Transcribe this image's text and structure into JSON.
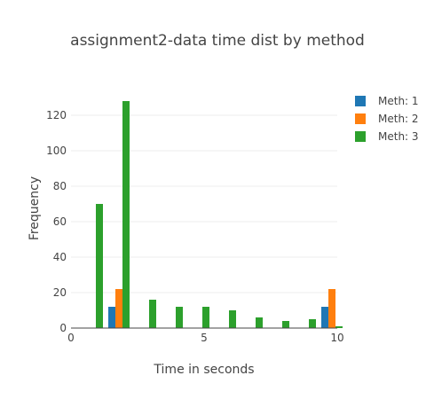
{
  "chart_data": {
    "type": "bar",
    "title": "assignment2-data time dist by method",
    "xlabel": "Time in seconds",
    "ylabel": "Frequency",
    "xlim": [
      0,
      10
    ],
    "ylim": [
      0,
      135
    ],
    "xticks": [
      0,
      5,
      10
    ],
    "yticks": [
      0,
      20,
      40,
      60,
      80,
      100,
      120
    ],
    "grid": true,
    "legend_position": "top-right",
    "bin_centers": [
      0.8,
      1.8,
      2.8,
      3.8,
      4.8,
      5.8,
      6.8,
      7.8,
      8.8,
      9.8
    ],
    "series": [
      {
        "name": "Meth: 1",
        "color": "#1f77b4",
        "values": [
          0,
          12,
          0,
          0,
          0,
          0,
          0,
          0,
          0,
          12
        ]
      },
      {
        "name": "Meth: 2",
        "color": "#ff7f0e",
        "values": [
          0,
          22,
          0,
          0,
          0,
          0,
          0,
          0,
          0,
          22
        ]
      },
      {
        "name": "Meth: 3",
        "color": "#2ca02c",
        "values": [
          70,
          128,
          16,
          12,
          12,
          10,
          6,
          4,
          5,
          1
        ]
      }
    ]
  }
}
